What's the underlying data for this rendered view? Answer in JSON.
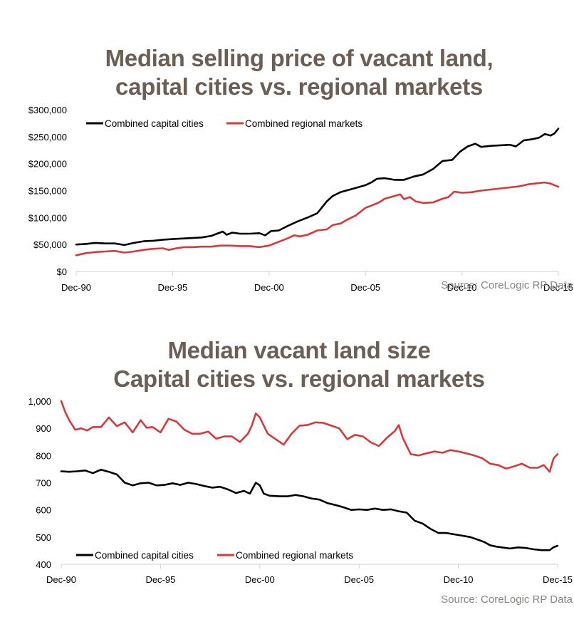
{
  "chart_data": [
    {
      "type": "line",
      "title": "Median selling price of vacant land,\ncapital cities vs. regional markets",
      "title_lines": [
        "Median selling price of vacant land,",
        "capital cities vs. regional markets"
      ],
      "xlabel": "",
      "ylabel": "",
      "x_unit": "years since Dec-1990",
      "xlim": [
        0,
        25
      ],
      "ylim": [
        0,
        300000
      ],
      "x_ticks": [
        0,
        5,
        10,
        15,
        20,
        25
      ],
      "x_tick_labels": [
        "Dec-90",
        "Dec-95",
        "Dec-00",
        "Dec-05",
        "Dec-10",
        "Dec-15"
      ],
      "y_ticks": [
        0,
        50000,
        100000,
        150000,
        200000,
        250000,
        300000
      ],
      "y_tick_labels": [
        "$0",
        "$50,000",
        "$100,000",
        "$150,000",
        "$200,000",
        "$250,000",
        "$300,000"
      ],
      "grid": false,
      "legend_position": "top-left",
      "source": "Source: CoreLogic RP Data",
      "series": [
        {
          "name": "Combined capital cities",
          "color": "#000000",
          "x": [
            0,
            0.5,
            1,
            1.5,
            2,
            2.5,
            3,
            3.5,
            4,
            4.5,
            5,
            5.5,
            6,
            6.5,
            7,
            7.3,
            7.6,
            7.8,
            8.1,
            8.5,
            9,
            9.5,
            9.8,
            10.1,
            10.5,
            11,
            11.5,
            12,
            12.5,
            13,
            13.3,
            13.7,
            14,
            14.5,
            15,
            15.3,
            15.6,
            16,
            16.5,
            17,
            17.5,
            18,
            18.5,
            19,
            19.5,
            19.9,
            20.3,
            20.7,
            21,
            21.5,
            22,
            22.5,
            22.8,
            23.2,
            23.6,
            24,
            24.3,
            24.6,
            24.8,
            25
          ],
          "values": [
            50000,
            51000,
            53000,
            52000,
            52000,
            49000,
            53000,
            56000,
            57000,
            59000,
            60000,
            61000,
            62000,
            63000,
            66000,
            70000,
            74000,
            68000,
            72000,
            70000,
            70000,
            71000,
            67000,
            75000,
            76000,
            85000,
            93000,
            100000,
            108000,
            130000,
            140000,
            147000,
            150000,
            155000,
            160000,
            165000,
            172000,
            173000,
            170000,
            170000,
            176000,
            180000,
            190000,
            205000,
            207000,
            222000,
            232000,
            237000,
            231000,
            233000,
            234000,
            235000,
            232000,
            243000,
            245000,
            248000,
            255000,
            252000,
            256000,
            265000
          ]
        },
        {
          "name": "Combined regional markets",
          "color": "#d6393a",
          "x": [
            0,
            0.5,
            1,
            1.5,
            2,
            2.5,
            3,
            3.5,
            4,
            4.5,
            4.8,
            5.2,
            5.6,
            6,
            6.5,
            7,
            7.5,
            8,
            8.5,
            9,
            9.5,
            10,
            10.5,
            11,
            11.3,
            11.6,
            12,
            12.5,
            13,
            13.3,
            13.7,
            14,
            14.5,
            15,
            15.3,
            15.7,
            16,
            16.5,
            16.8,
            17,
            17.3,
            17.6,
            18,
            18.5,
            19,
            19.3,
            19.6,
            20,
            20.5,
            21,
            21.5,
            22,
            22.5,
            23,
            23.5,
            24,
            24.3,
            24.6,
            25
          ],
          "values": [
            30000,
            34000,
            36000,
            37000,
            38000,
            35000,
            37000,
            40000,
            42000,
            43000,
            40000,
            43000,
            45000,
            45000,
            46000,
            46000,
            48000,
            48000,
            47000,
            47000,
            45000,
            48000,
            55000,
            62000,
            67000,
            65000,
            68000,
            76000,
            78000,
            86000,
            89000,
            95000,
            104000,
            118000,
            122000,
            128000,
            135000,
            140000,
            143000,
            134000,
            138000,
            130000,
            127000,
            128000,
            135000,
            138000,
            148000,
            146000,
            147000,
            150000,
            152000,
            154000,
            156000,
            158000,
            162000,
            164000,
            165000,
            163000,
            157000
          ]
        }
      ]
    },
    {
      "type": "line",
      "title": "Median vacant land size\nCapital cities vs. regional markets",
      "title_lines": [
        "Median vacant land size",
        "Capital cities vs. regional markets"
      ],
      "xlabel": "",
      "ylabel": "",
      "x_unit": "years since Dec-1990",
      "xlim": [
        0,
        25
      ],
      "ylim": [
        400,
        1000
      ],
      "x_ticks": [
        0,
        5,
        10,
        15,
        20,
        25
      ],
      "x_tick_labels": [
        "Dec-90",
        "Dec-95",
        "Dec-00",
        "Dec-05",
        "Dec-10",
        "Dec-15"
      ],
      "y_ticks": [
        400,
        500,
        600,
        700,
        800,
        900,
        1000
      ],
      "y_tick_labels": [
        "400",
        "500",
        "600",
        "700",
        "800",
        "900",
        "1,000"
      ],
      "grid": false,
      "legend_position": "bottom-left",
      "source": "Source: CoreLogic RP Data",
      "series": [
        {
          "name": "Combined capital cities",
          "color": "#000000",
          "x": [
            0,
            0.4,
            0.8,
            1.2,
            1.6,
            2,
            2.4,
            2.8,
            3.2,
            3.6,
            4,
            4.4,
            4.8,
            5.2,
            5.6,
            6,
            6.4,
            6.8,
            7.2,
            7.6,
            8,
            8.4,
            8.8,
            9.2,
            9.5,
            9.8,
            10,
            10.2,
            10.5,
            11,
            11.4,
            11.8,
            12.2,
            12.6,
            13,
            13.4,
            13.8,
            14.2,
            14.6,
            15,
            15.4,
            15.8,
            16.2,
            16.6,
            17,
            17.4,
            17.8,
            18.2,
            18.6,
            19,
            19.4,
            19.8,
            20.2,
            20.6,
            21,
            21.3,
            21.6,
            21.9,
            22.2,
            22.6,
            23,
            23.4,
            23.8,
            24.2,
            24.6,
            24.8,
            25
          ],
          "values": [
            742,
            740,
            742,
            745,
            735,
            748,
            740,
            730,
            700,
            690,
            698,
            700,
            690,
            692,
            698,
            692,
            700,
            695,
            688,
            682,
            685,
            675,
            662,
            670,
            660,
            700,
            690,
            660,
            652,
            650,
            650,
            655,
            650,
            642,
            638,
            625,
            618,
            610,
            600,
            602,
            600,
            605,
            600,
            602,
            595,
            590,
            560,
            550,
            530,
            515,
            515,
            510,
            505,
            500,
            490,
            482,
            470,
            465,
            462,
            458,
            462,
            460,
            455,
            452,
            452,
            463,
            468
          ]
        },
        {
          "name": "Combined regional markets",
          "color": "#d6393a",
          "x": [
            0,
            0.2,
            0.4,
            0.7,
            1,
            1.3,
            1.6,
            2,
            2.4,
            2.8,
            3.2,
            3.6,
            4,
            4.3,
            4.6,
            5,
            5.4,
            5.8,
            6.2,
            6.6,
            7,
            7.4,
            7.8,
            8.2,
            8.6,
            9,
            9.4,
            9.6,
            9.8,
            10,
            10.4,
            10.8,
            11.2,
            11.6,
            12,
            12.4,
            12.8,
            13.2,
            13.6,
            14,
            14.4,
            14.8,
            15.2,
            15.6,
            16,
            16.4,
            16.8,
            17,
            17.2,
            17.6,
            18,
            18.4,
            18.8,
            19.2,
            19.6,
            20,
            20.4,
            20.8,
            21.2,
            21.6,
            22,
            22.4,
            22.8,
            23.2,
            23.6,
            24,
            24.3,
            24.6,
            24.8,
            25
          ],
          "values": [
            1000,
            960,
            930,
            895,
            900,
            892,
            905,
            905,
            940,
            908,
            922,
            885,
            930,
            902,
            905,
            885,
            935,
            925,
            895,
            880,
            880,
            888,
            862,
            870,
            870,
            850,
            880,
            910,
            955,
            940,
            880,
            860,
            840,
            880,
            910,
            912,
            922,
            920,
            910,
            900,
            860,
            876,
            870,
            848,
            835,
            865,
            890,
            912,
            865,
            805,
            800,
            808,
            815,
            810,
            820,
            815,
            808,
            800,
            790,
            770,
            765,
            752,
            760,
            770,
            755,
            755,
            765,
            740,
            790,
            805
          ]
        }
      ]
    }
  ]
}
